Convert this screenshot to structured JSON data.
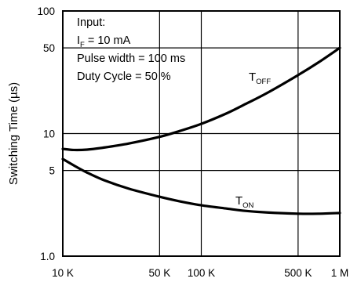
{
  "chart_data": {
    "type": "line",
    "x_scale": "log",
    "y_scale": "log",
    "xlim": [
      10000,
      1000000
    ],
    "ylim": [
      1,
      100
    ],
    "grid": true,
    "xlabel": "",
    "ylabel": "Switching Time (µs)",
    "x_ticks": [
      {
        "value": 10000,
        "label": "10 K"
      },
      {
        "value": 50000,
        "label": "50 K"
      },
      {
        "value": 100000,
        "label": "100 K"
      },
      {
        "value": 500000,
        "label": "500 K"
      },
      {
        "value": 1000000,
        "label": "1 M"
      }
    ],
    "y_ticks": [
      {
        "value": 1,
        "label": "1.0"
      },
      {
        "value": 5,
        "label": "5"
      },
      {
        "value": 10,
        "label": "10"
      },
      {
        "value": 50,
        "label": "50"
      },
      {
        "value": 100,
        "label": "100"
      }
    ],
    "annotation": {
      "line1": "Input:",
      "line2_main": "I",
      "line2_sub": "F",
      "line2_rest": " = 10 mA",
      "line3": "Pulse width = 100 ms",
      "line4": "Duty Cycle = 50 %"
    },
    "series": [
      {
        "main": "T",
        "sub": "OFF",
        "x": [
          10000,
          12000,
          15000,
          20000,
          30000,
          50000,
          70000,
          100000,
          150000,
          200000,
          300000,
          500000,
          700000,
          1000000
        ],
        "y": [
          7.5,
          7.35,
          7.4,
          7.7,
          8.3,
          9.4,
          10.5,
          12.0,
          14.5,
          17.0,
          21.5,
          30.0,
          38.0,
          50.0
        ]
      },
      {
        "main": "T",
        "sub": "ON",
        "x": [
          10000,
          12000,
          15000,
          20000,
          30000,
          50000,
          70000,
          100000,
          150000,
          200000,
          300000,
          500000,
          700000,
          1000000
        ],
        "y": [
          6.2,
          5.5,
          4.8,
          4.15,
          3.55,
          3.05,
          2.8,
          2.6,
          2.45,
          2.35,
          2.27,
          2.22,
          2.22,
          2.25
        ]
      }
    ]
  }
}
